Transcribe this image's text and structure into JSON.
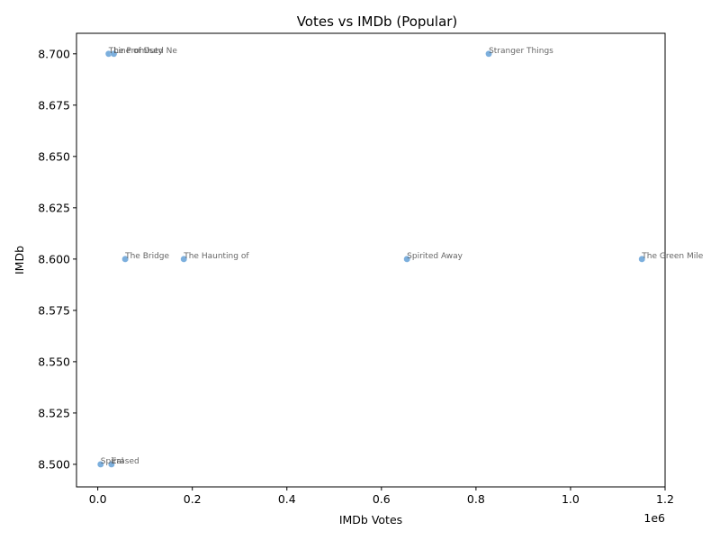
{
  "chart_data": {
    "type": "scatter",
    "title": "Votes vs IMDb (Popular)",
    "xlabel": "IMDb Votes",
    "ylabel": "IMDb",
    "x_offset_label": "1e6",
    "xlim": [
      -45000,
      1200000
    ],
    "ylim": [
      8.489,
      8.71
    ],
    "x_ticks": [
      0,
      200000,
      400000,
      600000,
      800000,
      1000000,
      1200000
    ],
    "x_tick_labels": [
      "0.0",
      "0.2",
      "0.4",
      "0.6",
      "0.8",
      "1.0",
      "1.2"
    ],
    "y_ticks": [
      8.5,
      8.525,
      8.55,
      8.575,
      8.6,
      8.625,
      8.65,
      8.675,
      8.7
    ],
    "y_tick_labels": [
      "8.500",
      "8.525",
      "8.550",
      "8.575",
      "8.600",
      "8.625",
      "8.650",
      "8.675",
      "8.700"
    ],
    "grid": false,
    "point_color": "#5b9bd5",
    "points": [
      {
        "label": "Stranger Things",
        "x": 827000,
        "y": 8.7
      },
      {
        "label": "The Green Mile",
        "x": 1151000,
        "y": 8.6
      },
      {
        "label": "Spirited Away",
        "x": 654000,
        "y": 8.6
      },
      {
        "label": "The Haunting of",
        "x": 182000,
        "y": 8.6
      },
      {
        "label": "The Bridge",
        "x": 58000,
        "y": 8.6
      },
      {
        "label": "The Promised Ne",
        "x": 23000,
        "y": 8.7
      },
      {
        "label": "Line of Duty",
        "x": 34000,
        "y": 8.7
      },
      {
        "label": "Spiral",
        "x": 6000,
        "y": 8.5
      },
      {
        "label": "Erased",
        "x": 29000,
        "y": 8.5
      }
    ]
  }
}
